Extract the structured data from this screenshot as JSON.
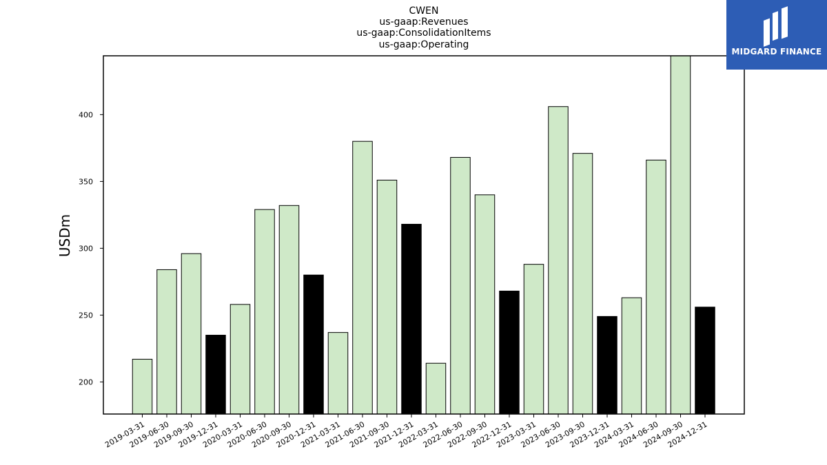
{
  "chart_data": {
    "type": "bar",
    "title_lines": [
      "CWEN",
      "us-gaap:Revenues",
      "us-gaap:ConsolidationItems",
      "us-gaap:Operating"
    ],
    "ylabel": "USDm",
    "xlabel": "",
    "ylim": [
      176,
      444
    ],
    "yticks": [
      200,
      250,
      300,
      350,
      400
    ],
    "categories": [
      "2019-03-31",
      "2019-06-30",
      "2019-09-30",
      "2019-12-31",
      "2020-03-31",
      "2020-06-30",
      "2020-09-30",
      "2020-12-31",
      "2021-03-31",
      "2021-06-30",
      "2021-09-30",
      "2021-12-31",
      "2022-03-31",
      "2022-06-30",
      "2022-09-30",
      "2022-12-31",
      "2023-03-31",
      "2023-06-30",
      "2023-09-30",
      "2023-12-31",
      "2024-03-31",
      "2024-06-30",
      "2024-09-30",
      "2024-12-31"
    ],
    "values": [
      217,
      284,
      296,
      235,
      258,
      329,
      332,
      280,
      237,
      380,
      351,
      318,
      214,
      368,
      340,
      268,
      288,
      406,
      371,
      249,
      263,
      366,
      445,
      256
    ],
    "colors": {
      "quarter": "#cfe9c8",
      "year_end": "#000000",
      "edge": "#000000"
    },
    "grid": false,
    "legend": "none"
  },
  "logo": {
    "text": "MIDGARD FINANCE",
    "background": "#2d5db5"
  }
}
